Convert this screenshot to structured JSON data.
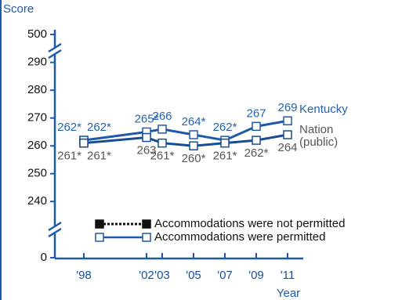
{
  "chart_data": {
    "type": "line",
    "y_axis_label": "Score",
    "x_axis_label": "Year",
    "x": [
      1998,
      2002,
      2003,
      2005,
      2007,
      2009,
      2011
    ],
    "xlim": [
      1996,
      2012
    ],
    "xticks": [
      {
        "value": 1998,
        "label": "'98"
      },
      {
        "value": 2002,
        "label": "'02"
      },
      {
        "value": 2003,
        "label": "'03"
      },
      {
        "value": 2005,
        "label": "'05"
      },
      {
        "value": 2007,
        "label": "'07"
      },
      {
        "value": 2009,
        "label": "'09"
      },
      {
        "value": 2011,
        "label": "'11"
      }
    ],
    "ylim": [
      235,
      293
    ],
    "yticks": [
      240,
      250,
      260,
      270,
      280,
      290
    ],
    "break_ticks": [
      500,
      0
    ],
    "legend": [
      "Accommodations were not permitted",
      "Accommodations were permitted"
    ],
    "series": [
      {
        "name": "Kentucky",
        "legend_entry": 0,
        "color": "#1e5aa8",
        "label_color": "#2462b0",
        "label_side": "above",
        "values": [
          262,
          null,
          null,
          null,
          null,
          null,
          null
        ],
        "value_labels": [
          "262*",
          null,
          null,
          null,
          null,
          null,
          null
        ]
      },
      {
        "name": "Kentucky",
        "legend_entry": 1,
        "color": "#1e5aa8",
        "label_color": "#2462b0",
        "label_side": "above",
        "values": [
          262,
          265,
          266,
          264,
          262,
          267,
          269
        ],
        "value_labels": [
          "262*",
          "265*",
          "266",
          "264*",
          "262*",
          "267",
          "269"
        ]
      },
      {
        "name_lines": [
          "Nation",
          "(public)"
        ],
        "legend_entry": 0,
        "color": "#1a4d8f",
        "label_color": "#555555",
        "label_side": "below",
        "values": [
          261,
          null,
          null,
          null,
          null,
          null,
          null
        ],
        "value_labels": [
          "261*",
          null,
          null,
          null,
          null,
          null,
          null
        ]
      },
      {
        "name_lines": [
          "Nation",
          "(public)"
        ],
        "legend_entry": 1,
        "color": "#1a4d8f",
        "label_color": "#555555",
        "label_side": "below",
        "values": [
          261,
          263,
          261,
          260,
          261,
          262,
          264
        ],
        "value_labels": [
          "261*",
          "263",
          "261*",
          "260*",
          "261*",
          "262*",
          "264"
        ]
      }
    ]
  }
}
